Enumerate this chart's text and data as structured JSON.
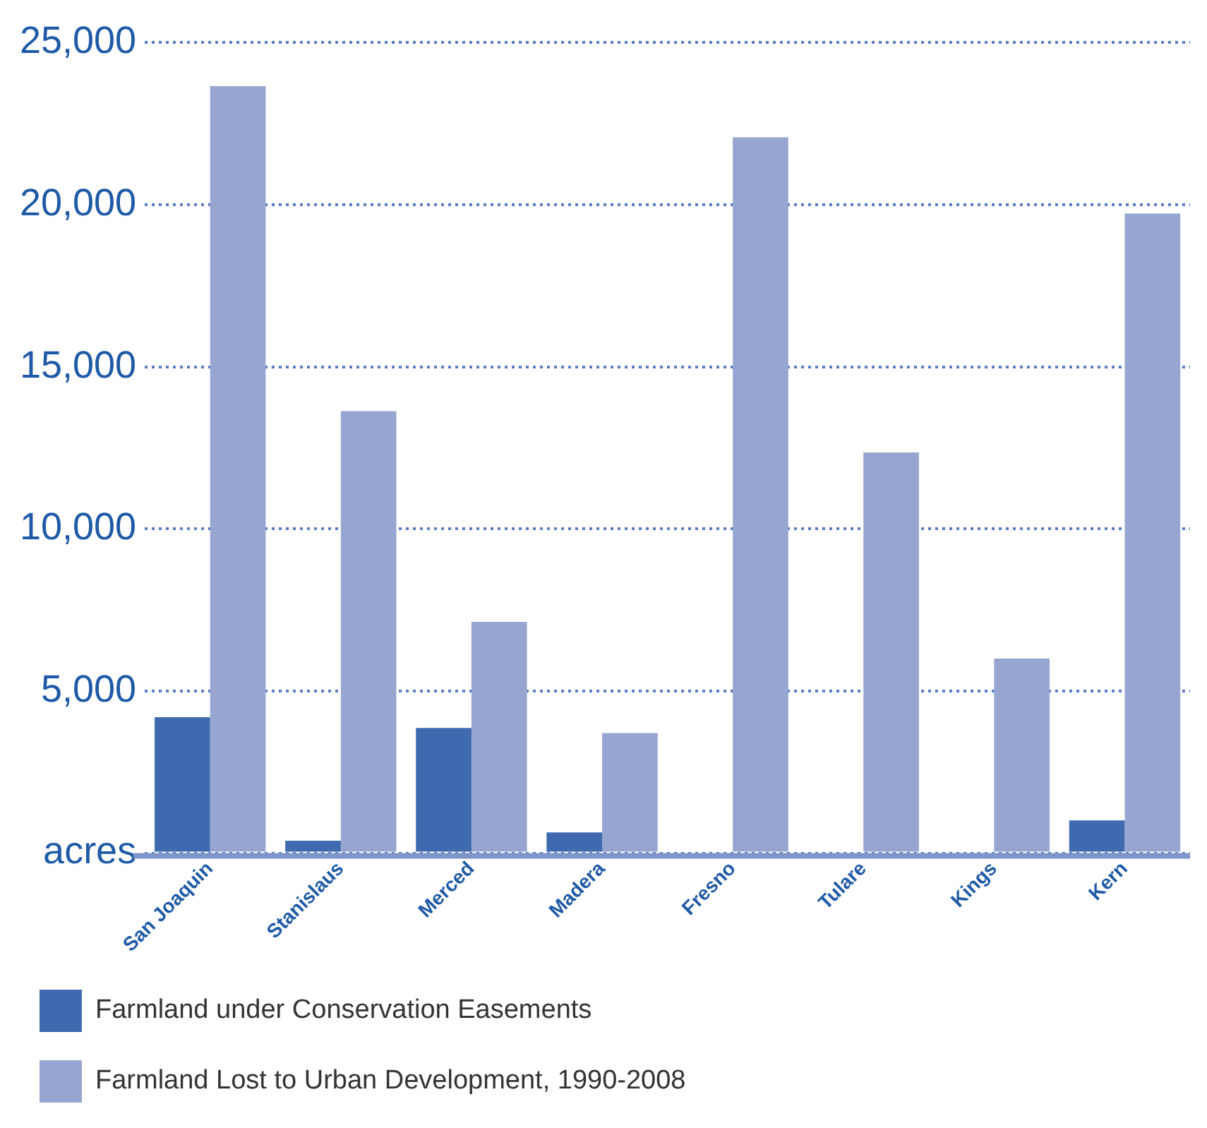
{
  "chart_data": {
    "type": "bar",
    "categories": [
      "San Joaquin",
      "Stanislaus",
      "Merced",
      "Madera",
      "Fresno",
      "Tulare",
      "Kings",
      "Kern"
    ],
    "series": [
      {
        "name": "Farmland under Conservation Easements",
        "color": "#3f6ab0",
        "values": [
          4190,
          380,
          3860,
          640,
          0,
          0,
          0,
          1010
        ]
      },
      {
        "name": "Farmland Lost to Urban Development, 1990-2008",
        "color": "#97a6d1",
        "values": [
          23660,
          13630,
          7130,
          3700,
          22080,
          12360,
          6000,
          19730
        ]
      }
    ],
    "ylim": [
      0,
      25000
    ],
    "yticks": [
      {
        "value": 0,
        "label": "acres"
      },
      {
        "value": 5000,
        "label": "5,000"
      },
      {
        "value": 10000,
        "label": "10,000"
      },
      {
        "value": 15000,
        "label": "15,000"
      },
      {
        "value": 20000,
        "label": "20,000"
      },
      {
        "value": 25000,
        "label": "25,000"
      }
    ],
    "grid": "y",
    "legend": "bottom"
  }
}
